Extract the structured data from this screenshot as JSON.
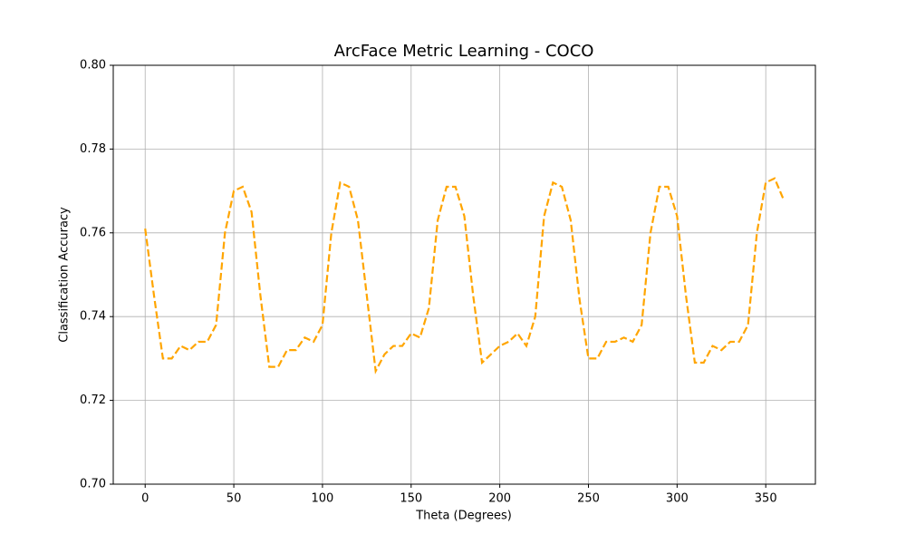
{
  "chart_data": {
    "type": "line",
    "title": "ArcFace Metric Learning - COCO",
    "xlabel": "Theta (Degrees)",
    "ylabel": "Classification Accuracy",
    "x": [
      0,
      5,
      10,
      15,
      20,
      25,
      30,
      35,
      40,
      45,
      50,
      55,
      60,
      65,
      70,
      75,
      80,
      85,
      90,
      95,
      100,
      105,
      110,
      115,
      120,
      125,
      130,
      135,
      140,
      145,
      150,
      155,
      160,
      165,
      170,
      175,
      180,
      185,
      190,
      195,
      200,
      205,
      210,
      215,
      220,
      225,
      230,
      235,
      240,
      245,
      250,
      255,
      260,
      265,
      270,
      275,
      280,
      285,
      290,
      295,
      300,
      305,
      310,
      315,
      320,
      325,
      330,
      335,
      340,
      345,
      350,
      355,
      360
    ],
    "series": [
      {
        "name": "ArcFace",
        "color": "#ffa500",
        "linestyle": "dashed",
        "values": [
          0.761,
          0.745,
          0.73,
          0.73,
          0.733,
          0.732,
          0.734,
          0.734,
          0.738,
          0.76,
          0.77,
          0.771,
          0.765,
          0.745,
          0.728,
          0.728,
          0.732,
          0.732,
          0.735,
          0.734,
          0.738,
          0.76,
          0.772,
          0.771,
          0.763,
          0.745,
          0.727,
          0.731,
          0.733,
          0.733,
          0.736,
          0.735,
          0.742,
          0.763,
          0.771,
          0.771,
          0.764,
          0.745,
          0.729,
          0.731,
          0.733,
          0.734,
          0.736,
          0.733,
          0.74,
          0.764,
          0.772,
          0.771,
          0.763,
          0.744,
          0.73,
          0.73,
          0.734,
          0.734,
          0.735,
          0.734,
          0.738,
          0.76,
          0.771,
          0.771,
          0.764,
          0.745,
          0.729,
          0.729,
          0.733,
          0.732,
          0.734,
          0.734,
          0.738,
          0.76,
          0.772,
          0.773,
          0.768
        ]
      }
    ],
    "xlim": [
      -18,
      378
    ],
    "xticks": [
      0,
      50,
      100,
      150,
      200,
      250,
      300,
      350
    ],
    "ylim": [
      0.7,
      0.8
    ],
    "yticks": [
      {
        "value": 0.7,
        "label": "0.70"
      },
      0.72,
      0.74,
      0.76,
      0.78,
      {
        "value": 0.8,
        "label": "0.80"
      }
    ],
    "grid": true
  }
}
